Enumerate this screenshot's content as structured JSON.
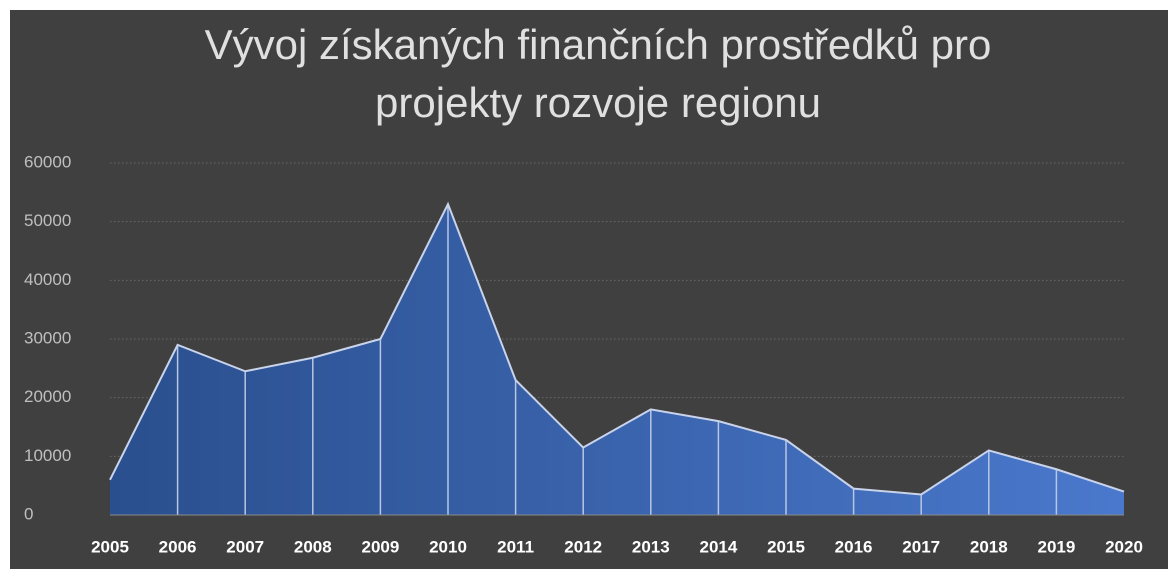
{
  "chart_data": {
    "type": "area",
    "title": [
      "Vývoj získaných finančních prostředků pro",
      "projekty rozvoje regionu"
    ],
    "categories": [
      "2005",
      "2006",
      "2007",
      "2008",
      "2009",
      "2010",
      "2011",
      "2012",
      "2013",
      "2014",
      "2015",
      "2016",
      "2017",
      "2018",
      "2019",
      "2020"
    ],
    "values": [
      6000,
      29000,
      24500,
      26800,
      30000,
      53000,
      23000,
      11500,
      18000,
      16000,
      12800,
      4500,
      3500,
      11000,
      7800,
      4000
    ],
    "color": "#4472c4",
    "ylim": [
      0,
      60000
    ],
    "yticks": [
      0,
      10000,
      20000,
      30000,
      40000,
      50000,
      60000
    ],
    "grid": true
  }
}
